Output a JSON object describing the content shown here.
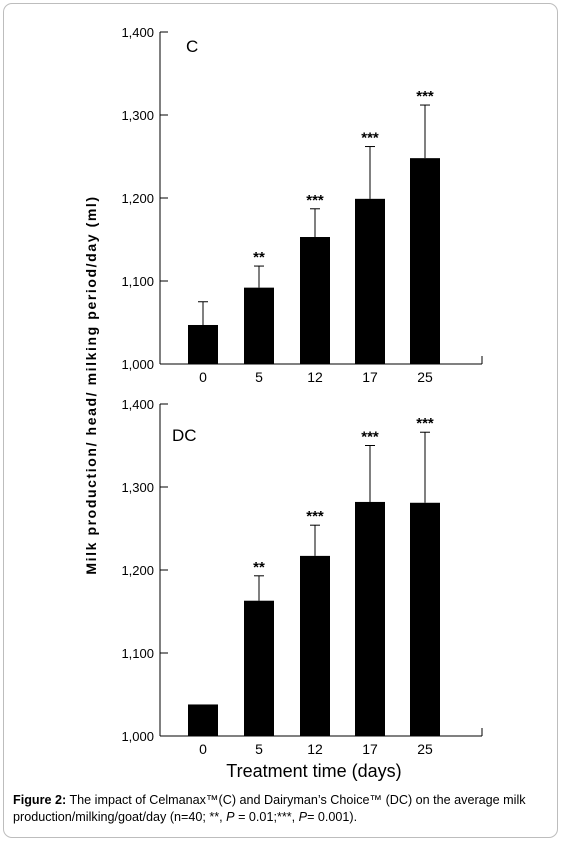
{
  "figure": {
    "ylabel": "Milk production/ head/ milking period/day (ml)",
    "xlabel": "Treatment time (days)",
    "caption_label": "Figure 2:",
    "caption_text_1": " The impact of Celmanax™(C) and Dairyman’s Choice™ (DC) on the average milk production/milking/goat/day (n=40; **, ",
    "caption_p1": "P",
    "caption_text_2": " = 0.01;***, ",
    "caption_p2": "P",
    "caption_text_3": "= 0.001)."
  },
  "chart_data": [
    {
      "type": "bar",
      "panel_label": "C",
      "categories": [
        "0",
        "5",
        "12",
        "17",
        "25"
      ],
      "values": [
        1047,
        1092,
        1153,
        1199,
        1248
      ],
      "error_upper": [
        1075,
        1118,
        1187,
        1262,
        1312
      ],
      "significance": [
        "",
        "**",
        "***",
        "***",
        "***"
      ],
      "ylim": [
        1000,
        1400
      ],
      "yticks": [
        1000,
        1100,
        1200,
        1300,
        1400
      ],
      "ytick_labels": [
        "1,000",
        "1,100",
        "1,200",
        "1,300",
        "1,400"
      ],
      "bar_color": "#000000"
    },
    {
      "type": "bar",
      "panel_label": "DC",
      "categories": [
        "0",
        "5",
        "12",
        "17",
        "25"
      ],
      "values": [
        1038,
        1163,
        1217,
        1282,
        1281
      ],
      "error_upper": [
        null,
        1193,
        1254,
        1350,
        1366
      ],
      "significance": [
        "",
        "**",
        "***",
        "***",
        "***"
      ],
      "ylim": [
        1000,
        1400
      ],
      "yticks": [
        1000,
        1100,
        1200,
        1300,
        1400
      ],
      "ytick_labels": [
        "1,000",
        "1,100",
        "1,200",
        "1,300",
        "1,400"
      ],
      "bar_color": "#000000"
    }
  ]
}
